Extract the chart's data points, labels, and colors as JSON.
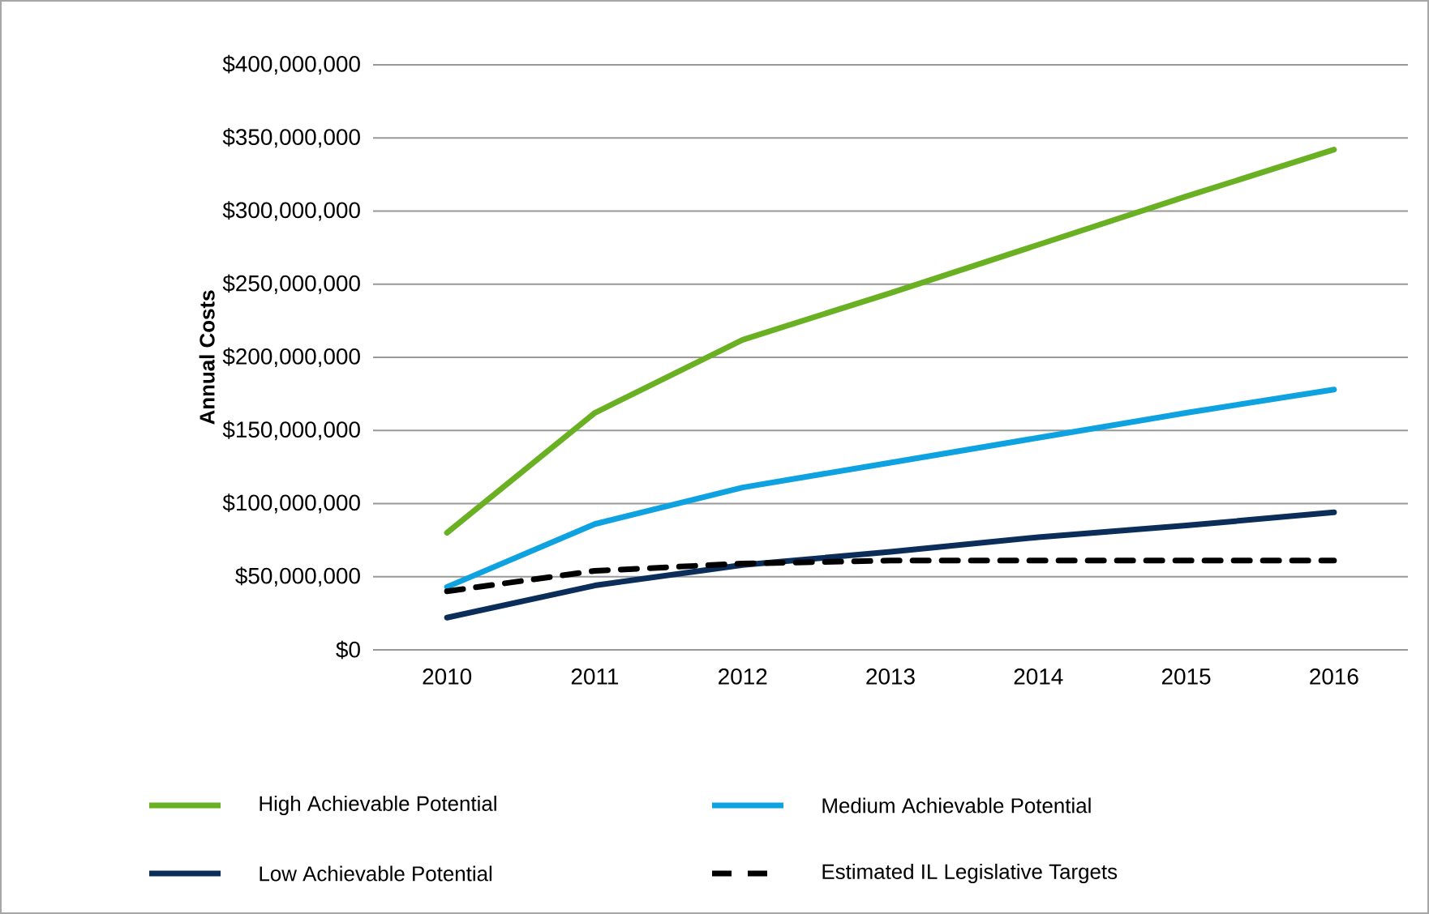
{
  "chart_data": {
    "type": "line",
    "ylabel": "Annual Costs",
    "categories": [
      "2010",
      "2011",
      "2012",
      "2013",
      "2014",
      "2015",
      "2016"
    ],
    "series": [
      {
        "name": "High Achievable Potential",
        "color": "#6ab023",
        "values": [
          80000000,
          162000000,
          212000000,
          244000000,
          277000000,
          310000000,
          342000000
        ]
      },
      {
        "name": "Medium Achievable Potential",
        "color": "#0ea2e0",
        "values": [
          43000000,
          86000000,
          111000000,
          128000000,
          145000000,
          162000000,
          178000000
        ]
      },
      {
        "name": "Low Achievable Potential",
        "color": "#0b2d5a",
        "values": [
          22000000,
          44000000,
          58000000,
          67000000,
          77000000,
          85000000,
          94000000
        ]
      },
      {
        "name": "Estimated IL Legislative Targets",
        "color": "#000000",
        "line_style": "dashed",
        "values": [
          40000000,
          54000000,
          59000000,
          61000000,
          61000000,
          61000000,
          61000000
        ]
      }
    ],
    "ylim": [
      0,
      400000000
    ],
    "yticks": [
      {
        "value": 0,
        "label": "$0"
      },
      {
        "value": 50000000,
        "label": "$50,000,000"
      },
      {
        "value": 100000000,
        "label": "$100,000,000"
      },
      {
        "value": 150000000,
        "label": "$150,000,000"
      },
      {
        "value": 200000000,
        "label": "$200,000,000"
      },
      {
        "value": 250000000,
        "label": "$250,000,000"
      },
      {
        "value": 300000000,
        "label": "$300,000,000"
      },
      {
        "value": 350000000,
        "label": "$350,000,000"
      },
      {
        "value": 400000000,
        "label": "$400,000,000"
      }
    ],
    "grid": "y",
    "legend": "bottom"
  }
}
